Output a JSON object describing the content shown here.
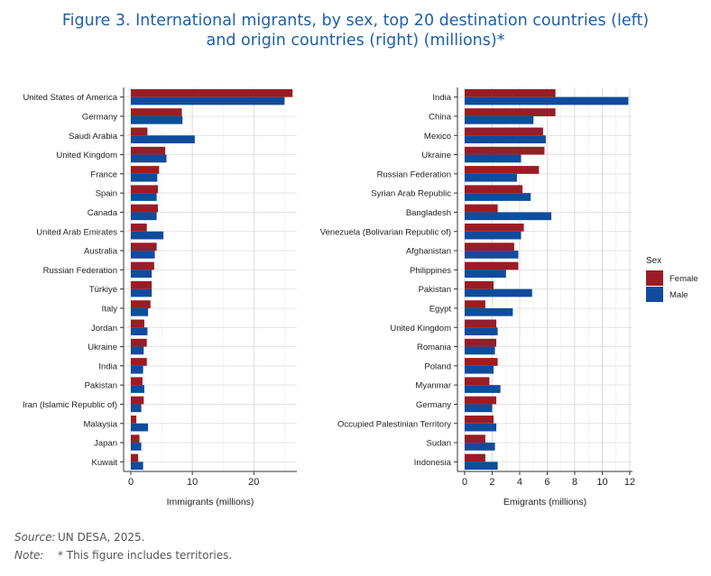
{
  "title_line1": "Figure 3. International migrants, by sex, top 20 destination countries (left)",
  "title_line2": "and origin countries (right) (millions)*",
  "colors": {
    "female": "#9b1c24",
    "male": "#0f4c9c",
    "title": "#1f5fa8"
  },
  "legend": {
    "title": "Sex",
    "female": "Female",
    "male": "Male"
  },
  "source": {
    "label": "Source:",
    "text": "UN DESA, 2025."
  },
  "note": {
    "label": "Note:",
    "text": "* This figure includes territories."
  },
  "chart_data": [
    {
      "type": "bar",
      "orientation": "horizontal",
      "xlabel": "Immigrants (millions)",
      "xlim": [
        0,
        27
      ],
      "xticks": [
        0,
        10,
        20
      ],
      "grid": true,
      "categories": [
        "United States of America",
        "Germany",
        "Saudi Arabia",
        "United Kingdom",
        "France",
        "Spain",
        "Canada",
        "United Arab Emirates",
        "Australia",
        "Russian Federation",
        "Türkiye",
        "Italy",
        "Jordan",
        "Ukraine",
        "India",
        "Pakistan",
        "Iran (Islamic Republic of)",
        "Malaysia",
        "Japan",
        "Kuwait"
      ],
      "series": [
        {
          "name": "Female",
          "values": [
            26.3,
            8.3,
            2.7,
            5.6,
            4.6,
            4.4,
            4.4,
            2.6,
            4.2,
            3.8,
            3.4,
            3.2,
            2.2,
            2.6,
            2.6,
            1.9,
            2.1,
            0.9,
            1.4,
            1.2
          ]
        },
        {
          "name": "Male",
          "values": [
            25.0,
            8.4,
            10.4,
            5.8,
            4.3,
            4.2,
            4.2,
            5.3,
            3.9,
            3.4,
            3.4,
            2.8,
            2.7,
            2.1,
            2.0,
            2.2,
            1.7,
            2.8,
            1.7,
            2.0
          ]
        }
      ]
    },
    {
      "type": "bar",
      "orientation": "horizontal",
      "xlabel": "Emigrants (millions)",
      "xlim": [
        0,
        12.2
      ],
      "xticks": [
        0,
        2,
        4,
        6,
        8,
        10,
        12
      ],
      "grid": true,
      "categories": [
        "India",
        "China",
        "Mexico",
        "Ukraine",
        "Russian Federation",
        "Syrian Arab Republic",
        "Bangladesh",
        "Venezuela (Bolivarian Republic of)",
        "Afghanistan",
        "Philippines",
        "Pakistan",
        "Egypt",
        "United Kingdom",
        "Romania",
        "Poland",
        "Myanmar",
        "Germany",
        "Occupied Palestinian Territory",
        "Sudan",
        "Indonesia"
      ],
      "series": [
        {
          "name": "Female",
          "values": [
            6.6,
            6.6,
            5.7,
            5.8,
            5.4,
            4.2,
            2.4,
            4.3,
            3.6,
            3.9,
            2.1,
            1.5,
            2.3,
            2.3,
            2.4,
            1.8,
            2.3,
            2.1,
            1.5,
            1.5
          ]
        },
        {
          "name": "Male",
          "values": [
            11.9,
            5.0,
            5.9,
            4.1,
            3.8,
            4.8,
            6.3,
            4.1,
            3.9,
            3.0,
            4.9,
            3.5,
            2.4,
            2.2,
            2.1,
            2.6,
            2.0,
            2.3,
            2.2,
            2.4
          ]
        }
      ]
    }
  ]
}
